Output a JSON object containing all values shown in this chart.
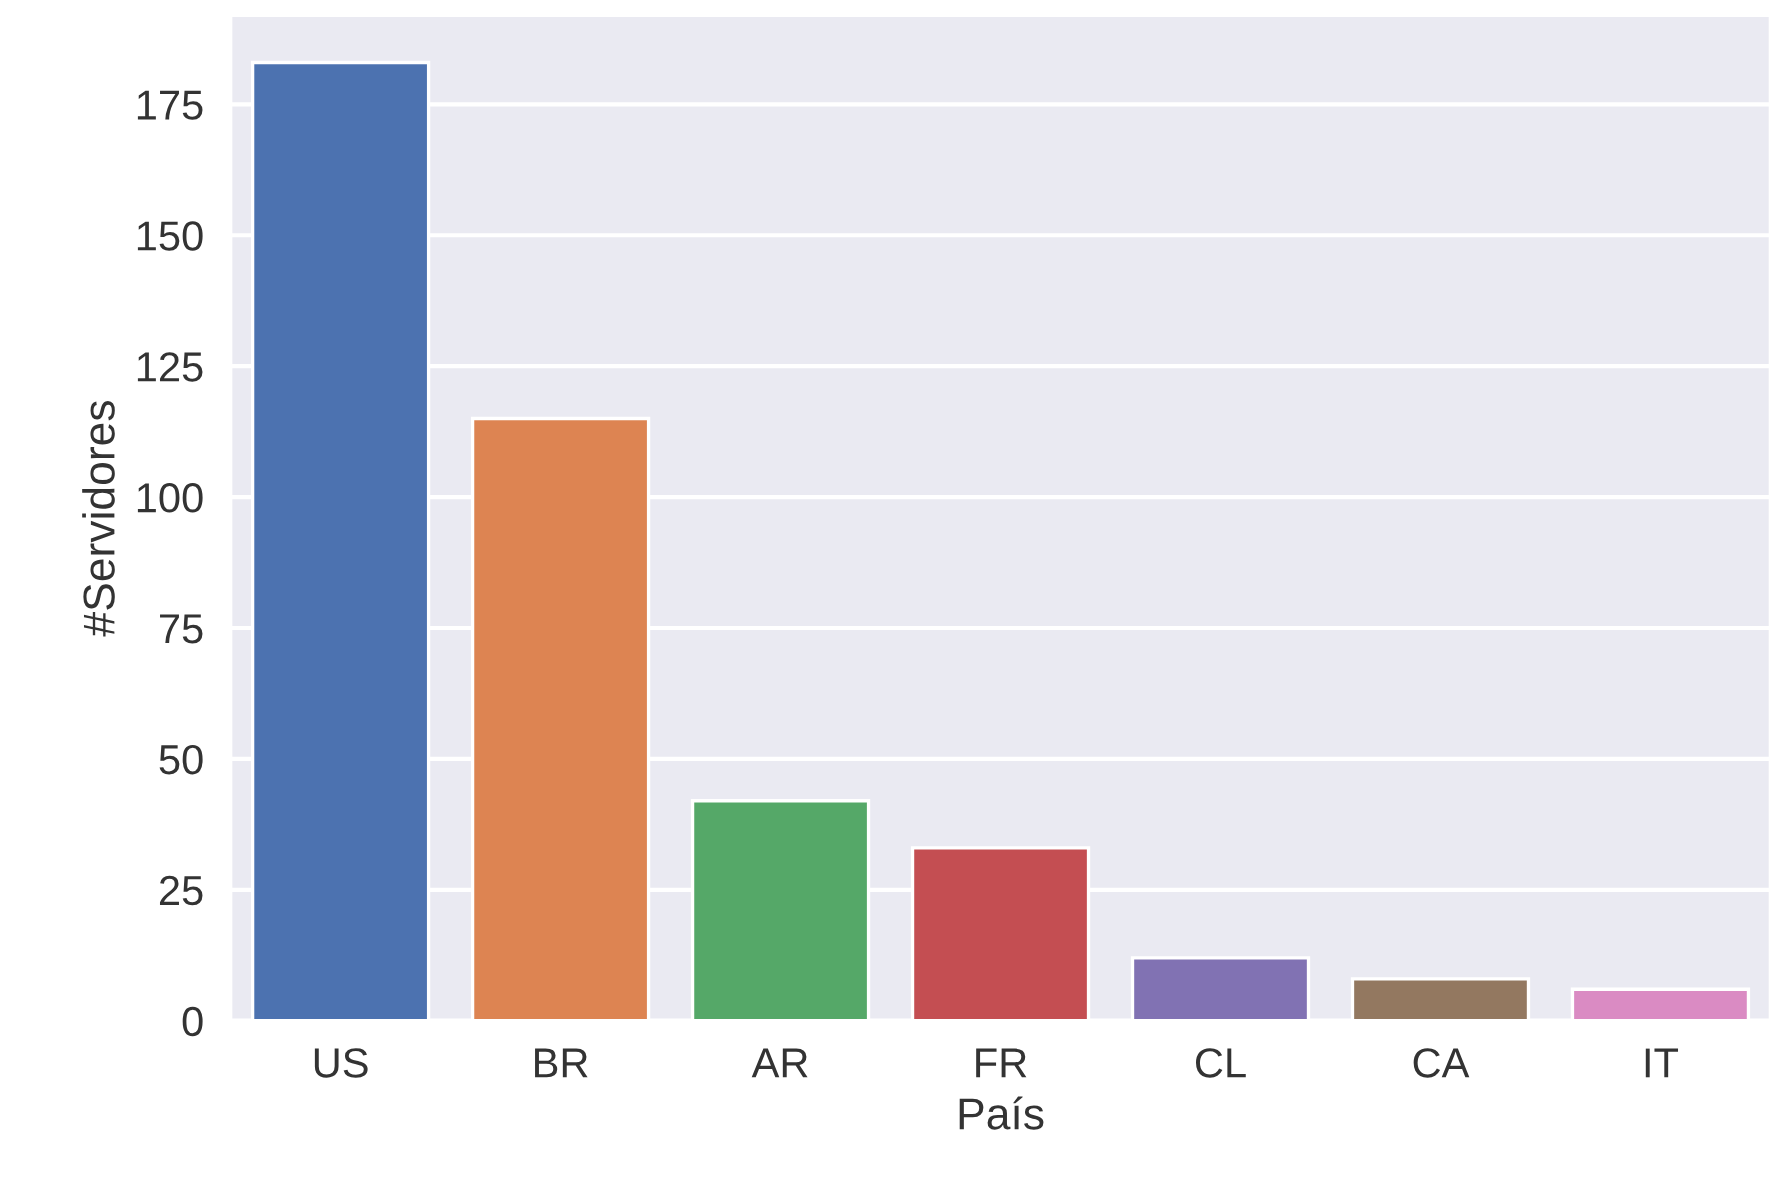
{
  "chart_data": {
    "type": "bar",
    "xlabel": "País",
    "ylabel": "#Servidores",
    "categories": [
      "US",
      "BR",
      "AR",
      "FR",
      "CL",
      "CA",
      "IT"
    ],
    "values": [
      183,
      115,
      42,
      33,
      12,
      8,
      6
    ],
    "colors": [
      "#4c72b0",
      "#dd8452",
      "#55a868",
      "#c44e52",
      "#8172b3",
      "#937860",
      "#da8bc3"
    ],
    "ylim": [
      0,
      192
    ],
    "yticks": [
      0,
      25,
      50,
      75,
      100,
      125,
      150,
      175
    ],
    "grid": "y"
  }
}
